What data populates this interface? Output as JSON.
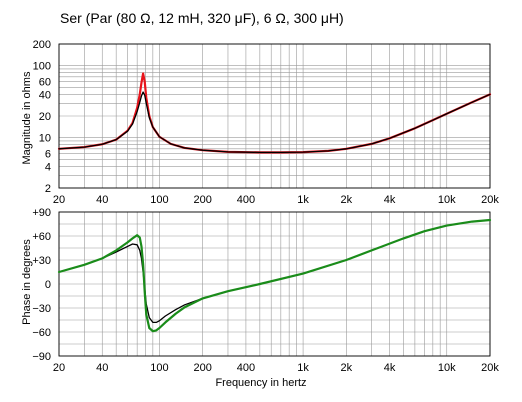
{
  "title": "Ser (Par (80 Ω, 12 mH, 320 μF), 6 Ω, 300 μH)",
  "chart_data": [
    {
      "type": "line",
      "ylabel": "Magnitude in ohms",
      "xscale": "log",
      "yscale": "log",
      "xlim": [
        20,
        20000
      ],
      "ylim": [
        2,
        200
      ],
      "grid": true,
      "xticks": [
        20,
        40,
        100,
        200,
        400,
        1000,
        2000,
        4000,
        10000,
        20000
      ],
      "xtick_labels": [
        "20",
        "40",
        "100",
        "200",
        "400",
        "1k",
        "2k",
        "4k",
        "10k",
        "20k"
      ],
      "yticks": [
        2,
        4,
        6,
        10,
        20,
        40,
        60,
        100,
        200
      ],
      "ytick_labels": [
        "2",
        "4",
        "6",
        "10",
        "20",
        "40",
        "60",
        "100",
        "200"
      ],
      "colors": {
        "red": "#e8141c",
        "black": "#000000"
      },
      "series": [
        {
          "color": "red",
          "x": [
            20,
            30,
            40,
            50,
            60,
            65,
            70,
            73,
            75,
            77,
            79,
            81,
            85,
            90,
            100,
            120,
            150,
            200,
            300,
            500,
            700,
            1000,
            1500,
            2000,
            3000,
            4000,
            6000,
            8000,
            10000,
            15000,
            20000
          ],
          "y": [
            7.0,
            7.4,
            8.1,
            9.4,
            12.5,
            16,
            26,
            40,
            58,
            78,
            60,
            36,
            20,
            14,
            10.3,
            8.2,
            7.2,
            6.7,
            6.35,
            6.25,
            6.25,
            6.3,
            6.55,
            7.0,
            8.2,
            9.8,
            13.5,
            17.5,
            21.5,
            31,
            40
          ]
        },
        {
          "color": "black",
          "x": [
            20,
            30,
            40,
            50,
            60,
            65,
            70,
            73,
            75,
            77,
            79,
            81,
            85,
            90,
            100,
            120,
            150,
            200,
            300,
            500,
            700,
            1000,
            1500,
            2000,
            3000,
            4000,
            6000,
            8000,
            10000,
            15000,
            20000
          ],
          "y": [
            7.0,
            7.4,
            8.1,
            9.4,
            12.3,
            15.5,
            23,
            31,
            38,
            43,
            39,
            30,
            19,
            14,
            10.3,
            8.2,
            7.2,
            6.7,
            6.35,
            6.25,
            6.25,
            6.3,
            6.55,
            7.0,
            8.2,
            9.8,
            13.5,
            17.5,
            21.5,
            31,
            40
          ]
        }
      ]
    },
    {
      "type": "line",
      "xlabel": "Frequency in hertz",
      "ylabel": "Phase in degrees",
      "xscale": "log",
      "xlim": [
        20,
        20000
      ],
      "ylim": [
        -90,
        90
      ],
      "grid": true,
      "xticks": [
        20,
        40,
        100,
        200,
        400,
        1000,
        2000,
        4000,
        10000,
        20000
      ],
      "xtick_labels": [
        "20",
        "40",
        "100",
        "200",
        "400",
        "1k",
        "2k",
        "4k",
        "10k",
        "20k"
      ],
      "yticks": [
        90,
        60,
        30,
        0,
        -30,
        -60,
        -90
      ],
      "ytick_labels": [
        "+90",
        "+60",
        "+30",
        "0",
        "−30",
        "−60",
        "−90"
      ],
      "colors": {
        "green": "#1a8c1a",
        "black": "#000000"
      },
      "series": [
        {
          "color": "black",
          "x": [
            20,
            30,
            40,
            50,
            60,
            65,
            70,
            73,
            75,
            77,
            79,
            81,
            85,
            90,
            95,
            100,
            110,
            130,
            150,
            200,
            300,
            500,
            1000,
            2000,
            3000,
            5000,
            7000,
            10000,
            15000,
            20000
          ],
          "y": [
            15,
            24,
            32,
            40,
            47,
            50,
            49,
            42,
            32,
            15,
            -5,
            -25,
            -42,
            -48,
            -48,
            -46,
            -40,
            -32,
            -26,
            -18,
            -9,
            0,
            13,
            30,
            42,
            57,
            66,
            73,
            78,
            80
          ]
        },
        {
          "color": "green",
          "x": [
            20,
            30,
            40,
            50,
            60,
            65,
            70,
            73,
            75,
            77,
            79,
            81,
            85,
            90,
            95,
            100,
            110,
            130,
            150,
            200,
            300,
            500,
            1000,
            2000,
            3000,
            5000,
            7000,
            10000,
            15000,
            20000
          ],
          "y": [
            15,
            24,
            32,
            42,
            52,
            57,
            61,
            58,
            47,
            25,
            -10,
            -38,
            -55,
            -59,
            -58,
            -55,
            -48,
            -37,
            -29,
            -18,
            -9,
            0,
            13,
            30,
            42,
            57,
            66,
            73,
            78,
            80
          ]
        }
      ]
    }
  ]
}
